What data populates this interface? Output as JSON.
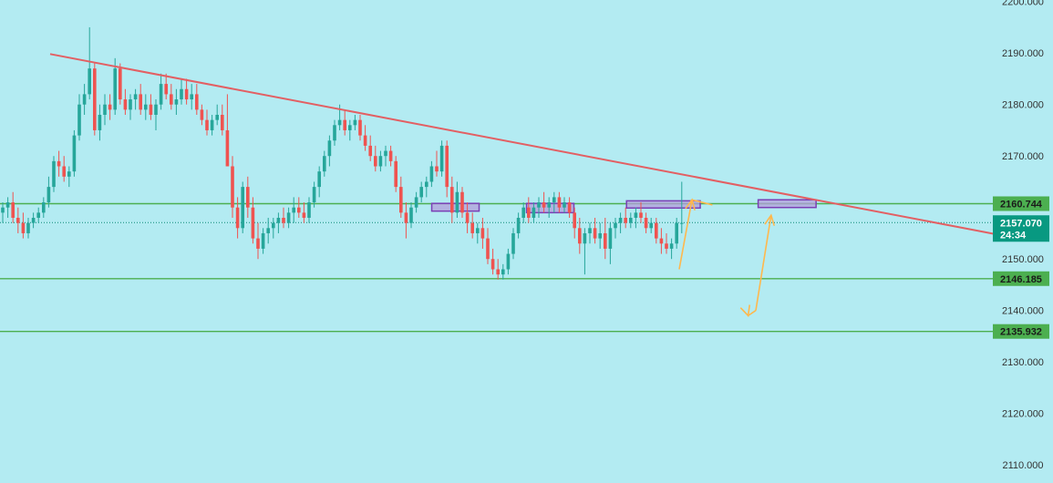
{
  "chart_data": {
    "type": "candlestick",
    "y_axis": {
      "ticks": [
        "2200.000",
        "2190.000",
        "2180.000",
        "2170.000",
        "2160.000",
        "2150.000",
        "2140.000",
        "2130.000",
        "2120.000",
        "2110.000"
      ],
      "ylim": [
        2106.5,
        2200.3
      ],
      "position": "right",
      "grid": false
    },
    "level_tags": [
      {
        "value": 2160.744,
        "label": "2160.744"
      },
      {
        "value": 2146.185,
        "label": "2146.185"
      },
      {
        "value": 2135.932,
        "label": "2135.932"
      }
    ],
    "current_price": {
      "value": 2157.07,
      "label": "2157.070",
      "countdown": "24:34"
    },
    "candles_ohlc": [
      [
        2159,
        2161,
        2157,
        2160
      ],
      [
        2160,
        2162,
        2158,
        2161
      ],
      [
        2161,
        2163,
        2157,
        2158
      ],
      [
        2158,
        2160,
        2155,
        2157
      ],
      [
        2157,
        2159,
        2154,
        2155
      ],
      [
        2155,
        2158,
        2154,
        2157
      ],
      [
        2157,
        2159,
        2156,
        2158
      ],
      [
        2158,
        2160,
        2157,
        2159
      ],
      [
        2159,
        2162,
        2158,
        2161
      ],
      [
        2161,
        2166,
        2160,
        2164
      ],
      [
        2164,
        2170,
        2163,
        2169
      ],
      [
        2169,
        2171,
        2166,
        2168
      ],
      [
        2168,
        2170,
        2165,
        2166
      ],
      [
        2166,
        2168,
        2164,
        2167
      ],
      [
        2167,
        2175,
        2166,
        2174
      ],
      [
        2174,
        2182,
        2173,
        2180
      ],
      [
        2180,
        2184,
        2178,
        2182
      ],
      [
        2182,
        2195,
        2181,
        2187
      ],
      [
        2187,
        2188,
        2174,
        2175
      ],
      [
        2175,
        2180,
        2173,
        2178
      ],
      [
        2178,
        2182,
        2176,
        2180
      ],
      [
        2180,
        2182,
        2177,
        2179
      ],
      [
        2179,
        2189,
        2178,
        2187
      ],
      [
        2187,
        2188,
        2180,
        2181
      ],
      [
        2181,
        2183,
        2178,
        2179
      ],
      [
        2179,
        2182,
        2177,
        2181
      ],
      [
        2181,
        2183,
        2179,
        2182
      ],
      [
        2182,
        2184,
        2178,
        2179
      ],
      [
        2179,
        2182,
        2177,
        2180
      ],
      [
        2180,
        2182,
        2177,
        2178
      ],
      [
        2178,
        2181,
        2175,
        2180
      ],
      [
        2180,
        2186,
        2179,
        2184
      ],
      [
        2184,
        2186,
        2181,
        2182
      ],
      [
        2182,
        2184,
        2179,
        2180
      ],
      [
        2180,
        2183,
        2178,
        2181
      ],
      [
        2181,
        2185,
        2180,
        2183
      ],
      [
        2183,
        2185,
        2180,
        2181
      ],
      [
        2181,
        2184,
        2179,
        2182
      ],
      [
        2182,
        2184,
        2178,
        2179
      ],
      [
        2179,
        2180,
        2176,
        2177
      ],
      [
        2177,
        2179,
        2174,
        2175
      ],
      [
        2175,
        2178,
        2174,
        2177
      ],
      [
        2177,
        2180,
        2176,
        2178
      ],
      [
        2178,
        2180,
        2174,
        2175
      ],
      [
        2175,
        2182,
        2168,
        2168
      ],
      [
        2168,
        2170,
        2158,
        2160
      ],
      [
        2160,
        2162,
        2154,
        2156
      ],
      [
        2156,
        2165,
        2155,
        2164
      ],
      [
        2164,
        2166,
        2158,
        2160
      ],
      [
        2160,
        2162,
        2153,
        2154
      ],
      [
        2154,
        2157,
        2150,
        2152
      ],
      [
        2152,
        2156,
        2151,
        2155
      ],
      [
        2155,
        2158,
        2153,
        2156
      ],
      [
        2156,
        2158,
        2154,
        2157
      ],
      [
        2157,
        2159,
        2155,
        2158
      ],
      [
        2158,
        2160,
        2156,
        2157
      ],
      [
        2157,
        2160,
        2156,
        2159
      ],
      [
        2159,
        2162,
        2157,
        2160
      ],
      [
        2160,
        2162,
        2158,
        2159
      ],
      [
        2159,
        2161,
        2157,
        2158
      ],
      [
        2158,
        2162,
        2157,
        2161
      ],
      [
        2161,
        2165,
        2160,
        2164
      ],
      [
        2164,
        2168,
        2162,
        2167
      ],
      [
        2167,
        2171,
        2166,
        2170
      ],
      [
        2170,
        2174,
        2168,
        2173
      ],
      [
        2173,
        2177,
        2172,
        2176
      ],
      [
        2176,
        2180,
        2175,
        2177
      ],
      [
        2177,
        2179,
        2174,
        2175
      ],
      [
        2175,
        2177,
        2173,
        2176
      ],
      [
        2176,
        2178,
        2175,
        2177
      ],
      [
        2177,
        2178,
        2173,
        2174
      ],
      [
        2174,
        2176,
        2171,
        2172
      ],
      [
        2172,
        2174,
        2169,
        2170
      ],
      [
        2170,
        2172,
        2167,
        2168
      ],
      [
        2168,
        2171,
        2167,
        2170
      ],
      [
        2170,
        2172,
        2168,
        2171
      ],
      [
        2171,
        2172,
        2168,
        2169
      ],
      [
        2169,
        2170,
        2163,
        2164
      ],
      [
        2164,
        2166,
        2158,
        2159
      ],
      [
        2159,
        2161,
        2154,
        2157
      ],
      [
        2157,
        2161,
        2156,
        2160
      ],
      [
        2160,
        2163,
        2159,
        2162
      ],
      [
        2162,
        2165,
        2161,
        2164
      ],
      [
        2164,
        2166,
        2162,
        2165
      ],
      [
        2165,
        2169,
        2164,
        2168
      ],
      [
        2168,
        2171,
        2166,
        2167
      ],
      [
        2167,
        2173,
        2166,
        2172
      ],
      [
        2172,
        2173,
        2162,
        2164
      ],
      [
        2164,
        2166,
        2157,
        2159
      ],
      [
        2159,
        2165,
        2158,
        2163
      ],
      [
        2163,
        2164,
        2158,
        2159
      ],
      [
        2159,
        2161,
        2155,
        2157
      ],
      [
        2157,
        2159,
        2154,
        2155
      ],
      [
        2155,
        2157,
        2153,
        2156
      ],
      [
        2156,
        2158,
        2152,
        2154
      ],
      [
        2154,
        2156,
        2149,
        2150
      ],
      [
        2150,
        2152,
        2147,
        2148
      ],
      [
        2148,
        2150,
        2146,
        2147
      ],
      [
        2147,
        2149,
        2146,
        2148
      ],
      [
        2148,
        2152,
        2147,
        2151
      ],
      [
        2151,
        2156,
        2150,
        2155
      ],
      [
        2155,
        2159,
        2154,
        2158
      ],
      [
        2158,
        2161,
        2157,
        2160
      ],
      [
        2160,
        2162,
        2157,
        2158
      ],
      [
        2158,
        2161,
        2157,
        2160
      ],
      [
        2160,
        2162,
        2158,
        2161
      ],
      [
        2161,
        2163,
        2159,
        2160
      ],
      [
        2160,
        2162,
        2158,
        2161
      ],
      [
        2161,
        2163,
        2159,
        2162
      ],
      [
        2162,
        2163,
        2159,
        2160
      ],
      [
        2160,
        2162,
        2159,
        2161
      ],
      [
        2161,
        2162,
        2158,
        2159
      ],
      [
        2159,
        2160,
        2154,
        2156
      ],
      [
        2156,
        2158,
        2151,
        2153
      ],
      [
        2153,
        2156,
        2147,
        2155
      ],
      [
        2155,
        2157,
        2153,
        2156
      ],
      [
        2156,
        2158,
        2153,
        2154
      ],
      [
        2154,
        2157,
        2152,
        2155
      ],
      [
        2155,
        2158,
        2150,
        2152
      ],
      [
        2152,
        2157,
        2149,
        2156
      ],
      [
        2156,
        2158,
        2154,
        2157
      ],
      [
        2157,
        2159,
        2155,
        2158
      ],
      [
        2158,
        2160,
        2156,
        2157
      ],
      [
        2157,
        2159,
        2156,
        2158
      ],
      [
        2158,
        2160,
        2156,
        2159
      ],
      [
        2159,
        2161,
        2157,
        2158
      ],
      [
        2158,
        2159,
        2155,
        2156
      ],
      [
        2156,
        2158,
        2155,
        2157
      ],
      [
        2157,
        2158,
        2153,
        2154
      ],
      [
        2154,
        2156,
        2151,
        2153
      ],
      [
        2153,
        2155,
        2151,
        2152
      ],
      [
        2152,
        2154,
        2150,
        2153
      ],
      [
        2153,
        2158,
        2152,
        2157
      ],
      [
        2157,
        2165,
        2155,
        2157
      ]
    ],
    "annotations": {
      "trendline": {
        "from": [
          0,
          2189.8
        ],
        "to": [
          153,
          2154.8
        ],
        "color": "#e35f63"
      },
      "horizontal_levels": [
        2160.744,
        2146.185,
        2135.932
      ],
      "zones": [
        {
          "from": 0.41,
          "to": 0.455,
          "value_low": 2159.3,
          "value_high": 2160.8
        },
        {
          "from": 0.5,
          "to": 0.545,
          "value_low": 2159.0,
          "value_high": 2160.8
        },
        {
          "from": 0.595,
          "to": 0.665,
          "value_low": 2159.9,
          "value_high": 2161.3
        },
        {
          "from": 0.72,
          "to": 0.775,
          "value_low": 2160.0,
          "value_high": 2161.5
        }
      ],
      "projection_path": [
        [
          132.5,
          2148.0
        ],
        [
          135.0,
          2161.5
        ],
        [
          139.0,
          2160.5
        ],
        [
          146.0,
          2139.0
        ],
        [
          147.5,
          2140.0
        ],
        [
          150.5,
          2158.5
        ]
      ],
      "colors": {
        "up": "#26a69a",
        "down": "#ef5350",
        "level": "#4caf50",
        "zone_fill": "#b39ddb",
        "zone_stroke": "#7b3fb5",
        "projection": "#ffb84d",
        "price_tag": "#089981",
        "level_tag": "#4caf50"
      }
    }
  }
}
